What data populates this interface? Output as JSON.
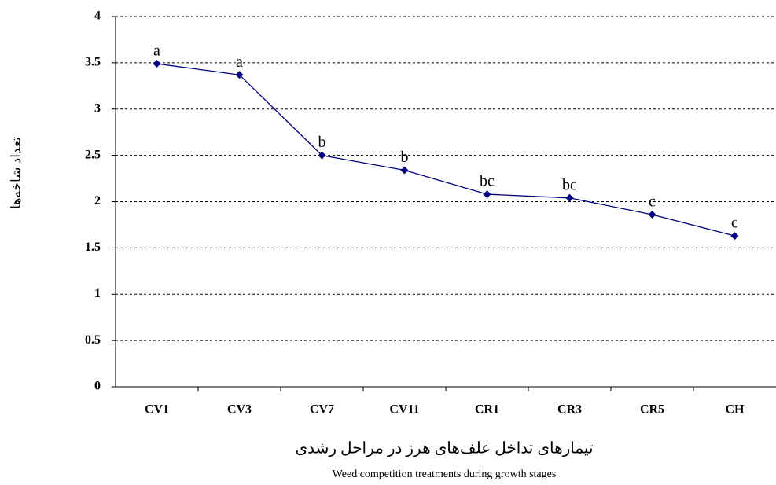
{
  "chart_data": {
    "type": "line",
    "x_label": "تیمارهای تداخل علف‌های هرز در مراحل رشدی",
    "x_label_en": "Weed competition treatments during growth stages",
    "y_label": "تعداد شاخه‌ها",
    "categories": [
      "CV1",
      "CV3",
      "CV7",
      "CV11",
      "CR1",
      "CR3",
      "CR5",
      "CH"
    ],
    "series": [
      {
        "color": "#000080",
        "values": [
          3.49,
          3.37,
          2.5,
          2.34,
          2.08,
          2.04,
          1.86,
          1.63
        ],
        "annotations": [
          "a",
          "a",
          "b",
          "b",
          "bc",
          "bc",
          "c",
          "c"
        ]
      }
    ],
    "ylim": [
      0,
      4
    ],
    "yticks": [
      0,
      0.5,
      1,
      1.5,
      2,
      2.5,
      3,
      3.5,
      4
    ],
    "grid": true
  }
}
